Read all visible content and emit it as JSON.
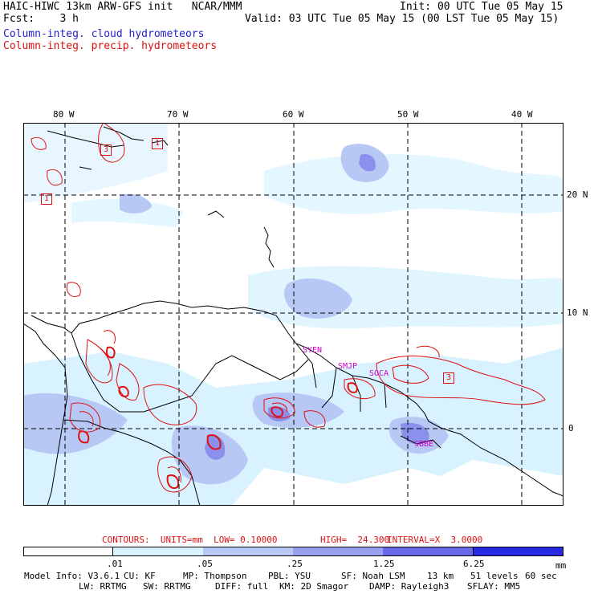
{
  "header": {
    "title": "HAIC-HIWC 13km ARW-GFS init   NCAR/MMM",
    "init": "Init: 00 UTC Tue 05 May 15",
    "fcst": "Fcst:    3 h",
    "valid": "Valid: 03 UTC Tue 05 May 15 (00 LST Tue 05 May 15)",
    "line_blue": "Column-integ. cloud hydrometeors",
    "line_red": "Column-integ. precip. hydrometeors"
  },
  "axes": {
    "lon_labels": [
      "80 W",
      "70 W",
      "60 W",
      "50 W",
      "40 W"
    ],
    "lat_labels": [
      "20 N",
      "10 N",
      "0"
    ]
  },
  "stations": [
    "SYEN",
    "SMJP",
    "SOCA",
    "SBBE"
  ],
  "contour_boxes": [
    "1",
    "3",
    "1",
    "3"
  ],
  "contours_info": {
    "contours": "CONTOURS:  UNITS=mm  LOW= 0.10000",
    "high": "HIGH=  24.300",
    "interval": "INTERVAL=X  3.0000"
  },
  "colorbar": {
    "labels": [
      ".01",
      ".05",
      ".25",
      "1.25",
      "6.25"
    ],
    "unit": "mm",
    "colors": [
      "#ffffff",
      "#d9f2ff",
      "#b8c8f5",
      "#9aa0ef",
      "#6868e8",
      "#3434e4",
      "#0000e0"
    ]
  },
  "footer": {
    "model": "Model Info: V3.6.1",
    "cu": "CU: KF",
    "mp": "MP: Thompson",
    "pbl": "PBL: YSU",
    "sf": "SF: Noah LSM",
    "res": "13 km",
    "levels": "51 levels",
    "sec": "60 sec",
    "lw": "LW: RRTMG",
    "sw": "SW: RRTMG",
    "diff": "DIFF: full",
    "km": "KM: 2D Smagor",
    "damp": "DAMP: Rayleigh3",
    "sflay": "SFLAY: MM5"
  },
  "colors": {
    "title_blue": "#2222cc",
    "title_red": "#dd1111"
  }
}
